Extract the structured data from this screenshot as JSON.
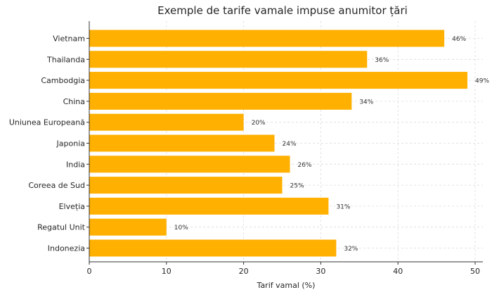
{
  "chart_data": {
    "type": "bar",
    "orientation": "horizontal",
    "title": "Exemple de tarife vamale impuse anumitor țări",
    "xlabel": "Tarif vamal (%)",
    "ylabel": "",
    "xlim": [
      0,
      51
    ],
    "xticks": [
      0,
      10,
      20,
      30,
      40,
      50
    ],
    "grid": true,
    "bar_color": "#ffb000",
    "categories": [
      "Vietnam",
      "Thailanda",
      "Cambodgia",
      "China",
      "Uniunea Europeană",
      "Japonia",
      "India",
      "Coreea de Sud",
      "Elveția",
      "Regatul Unit",
      "Indonezia"
    ],
    "values": [
      46,
      36,
      49,
      34,
      20,
      24,
      26,
      25,
      31,
      10,
      32
    ],
    "data_labels": [
      "46%",
      "36%",
      "49%",
      "34%",
      "20%",
      "24%",
      "26%",
      "25%",
      "31%",
      "10%",
      "32%"
    ]
  }
}
